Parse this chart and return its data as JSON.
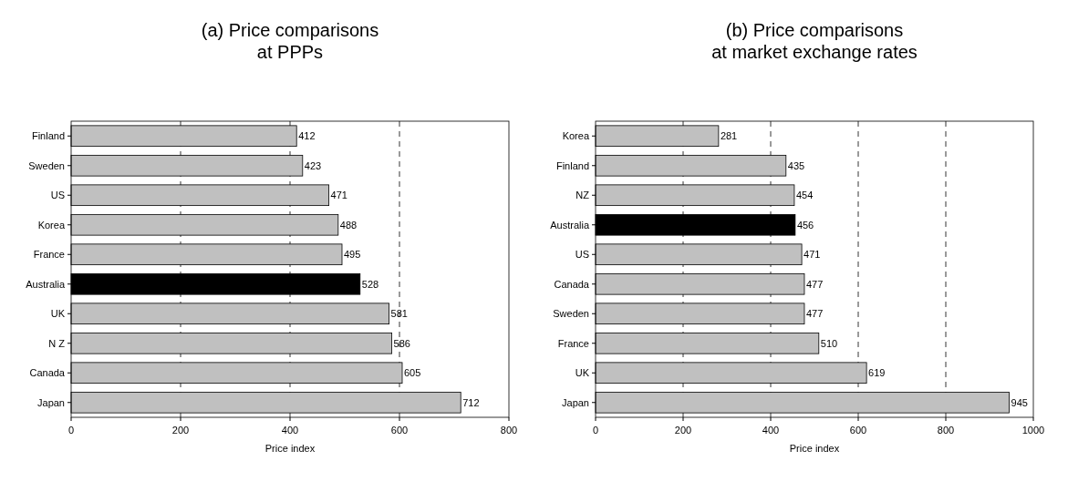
{
  "chart_data": [
    {
      "type": "bar",
      "orientation": "horizontal",
      "title": "(a) Price comparisons\nat PPPs",
      "xlabel": "Price index",
      "categories": [
        "Finland",
        "Sweden",
        "US",
        "Korea",
        "France",
        "Australia",
        "UK",
        "N Z",
        "Canada",
        "Japan"
      ],
      "values": [
        412,
        423,
        471,
        488,
        495,
        528,
        581,
        586,
        605,
        712
      ],
      "colors": [
        "#c0c0c0",
        "#c0c0c0",
        "#c0c0c0",
        "#c0c0c0",
        "#c0c0c0",
        "#000000",
        "#c0c0c0",
        "#c0c0c0",
        "#c0c0c0",
        "#c0c0c0"
      ],
      "xlim": [
        0,
        800
      ],
      "xticks": [
        0,
        200,
        400,
        600,
        800
      ],
      "grid": "x",
      "data_labels": true
    },
    {
      "type": "bar",
      "orientation": "horizontal",
      "title": "(b) Price comparisons\nat market exchange rates",
      "xlabel": "Price index",
      "categories": [
        "Korea",
        "Finland",
        "NZ",
        "Australia",
        "US",
        "Canada",
        "Sweden",
        "France",
        "UK",
        "Japan"
      ],
      "values": [
        281,
        435,
        454,
        456,
        471,
        477,
        477,
        510,
        619,
        945
      ],
      "colors": [
        "#c0c0c0",
        "#c0c0c0",
        "#c0c0c0",
        "#000000",
        "#c0c0c0",
        "#c0c0c0",
        "#c0c0c0",
        "#c0c0c0",
        "#c0c0c0",
        "#c0c0c0"
      ],
      "xlim": [
        0,
        1000
      ],
      "xticks": [
        0,
        200,
        400,
        600,
        800,
        1000
      ],
      "grid": "x",
      "data_labels": true
    }
  ]
}
